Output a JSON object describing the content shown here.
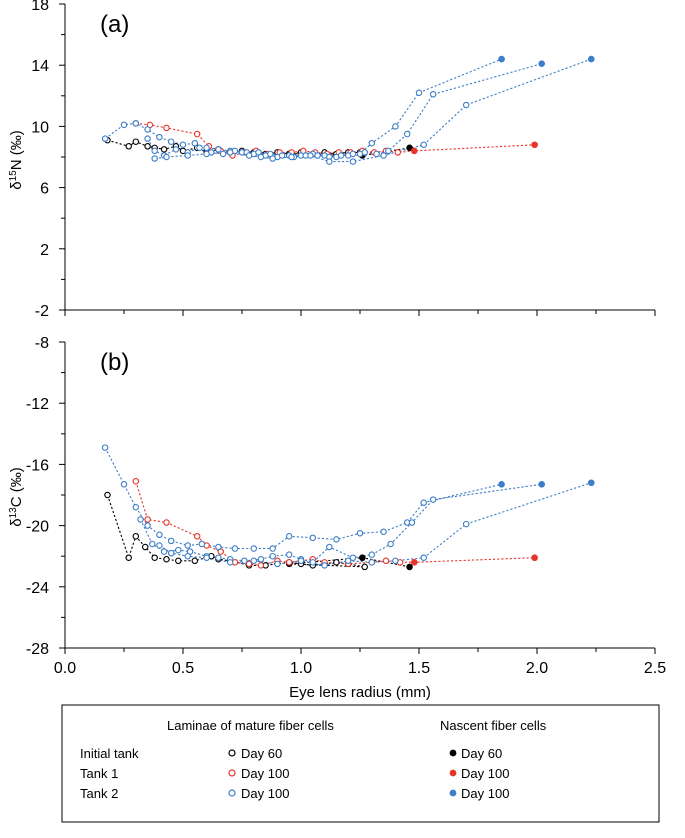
{
  "colors": {
    "black": "#000000",
    "red": "#e8352a",
    "blue": "#3d7ec8"
  },
  "shared_x": {
    "label": "Eye lens radius (mm)",
    "ticks": [
      "0.0",
      "0.5",
      "1.0",
      "1.5",
      "2.0",
      "2.5"
    ]
  },
  "legend": {
    "heading_mature": "Laminae of mature fiber cells",
    "heading_nascent": "Nascent fiber cells",
    "rows": [
      {
        "group": "Initial tank",
        "label": "Day 60",
        "color": "black"
      },
      {
        "group": "Tank 1",
        "label": "Day 100",
        "color": "red"
      },
      {
        "group": "Tank 2",
        "label": "Day 100",
        "color": "blue"
      }
    ]
  },
  "chart_data": [
    {
      "type": "line",
      "panel": "(a)",
      "ylabel_main": "δ",
      "ylabel_sup": "15",
      "ylabel_rest": "N (‰)",
      "xlim": [
        0,
        2.5
      ],
      "ylim": [
        -2,
        18
      ],
      "yticks": [
        -2,
        2,
        6,
        10,
        14,
        18
      ],
      "ytick_labels": [
        "-2",
        "2",
        "6",
        "10",
        "14",
        "18"
      ],
      "series": [
        {
          "name": "Initial tank Day 60",
          "color": "black",
          "points": [
            [
              0.18,
              9.1
            ],
            [
              0.27,
              8.7
            ],
            [
              0.3,
              9.0
            ],
            [
              0.35,
              8.7
            ],
            [
              0.38,
              8.6
            ],
            [
              0.42,
              8.5
            ],
            [
              0.47,
              8.7
            ],
            [
              0.5,
              8.4
            ],
            [
              0.56,
              8.6
            ],
            [
              0.6,
              8.3
            ],
            [
              0.65,
              8.5
            ],
            [
              0.7,
              8.3
            ],
            [
              0.75,
              8.4
            ],
            [
              0.8,
              8.3
            ],
            [
              0.85,
              8.2
            ],
            [
              0.9,
              8.3
            ],
            [
              0.95,
              8.2
            ],
            [
              1.0,
              8.3
            ],
            [
              1.05,
              8.2
            ],
            [
              1.1,
              8.3
            ],
            [
              1.15,
              8.2
            ],
            [
              1.2,
              8.3
            ],
            [
              1.25,
              8.3
            ]
          ],
          "nascent": [
            [
              0.95,
              8.2
            ],
            [
              1.26,
              8.1
            ],
            [
              1.46,
              8.6
            ]
          ]
        },
        {
          "name": "Tank 1 Day 100",
          "color": "red",
          "points": [
            [
              0.3,
              10.2
            ],
            [
              0.36,
              10.1
            ],
            [
              0.43,
              9.9
            ],
            [
              0.56,
              9.5
            ],
            [
              0.61,
              8.7
            ],
            [
              0.66,
              8.4
            ],
            [
              0.71,
              8.1
            ],
            [
              0.76,
              8.3
            ],
            [
              0.81,
              8.4
            ],
            [
              0.86,
              8.2
            ],
            [
              0.91,
              8.3
            ],
            [
              0.96,
              8.3
            ],
            [
              1.01,
              8.4
            ],
            [
              1.06,
              8.3
            ],
            [
              1.11,
              8.2
            ],
            [
              1.16,
              8.3
            ],
            [
              1.21,
              8.3
            ],
            [
              1.26,
              8.4
            ],
            [
              1.31,
              8.3
            ],
            [
              1.36,
              8.4
            ],
            [
              1.41,
              8.3
            ]
          ],
          "nascent": [
            [
              1.48,
              8.4
            ],
            [
              1.99,
              8.8
            ]
          ]
        },
        {
          "name": "Tank 2 Day 100 (1)",
          "color": "blue",
          "points": [
            [
              0.17,
              9.2
            ],
            [
              0.25,
              10.1
            ],
            [
              0.3,
              10.2
            ],
            [
              0.35,
              9.8
            ],
            [
              0.4,
              9.3
            ],
            [
              0.45,
              9.0
            ],
            [
              0.5,
              8.8
            ],
            [
              0.55,
              8.9
            ],
            [
              0.6,
              8.6
            ],
            [
              0.65,
              8.5
            ],
            [
              0.7,
              8.4
            ],
            [
              0.75,
              8.3
            ],
            [
              0.8,
              8.2
            ],
            [
              0.85,
              8.1
            ],
            [
              0.9,
              8.0
            ],
            [
              0.95,
              8.1
            ],
            [
              1.0,
              8.1
            ],
            [
              1.05,
              8.2
            ],
            [
              1.1,
              8.1
            ],
            [
              1.15,
              8.0
            ],
            [
              1.2,
              8.1
            ],
            [
              1.25,
              8.2
            ],
            [
              1.3,
              8.9
            ],
            [
              1.4,
              10.0
            ],
            [
              1.5,
              12.2
            ]
          ],
          "nascent": [
            [
              1.85,
              14.4
            ]
          ]
        },
        {
          "name": "Tank 2 Day 100 (2)",
          "color": "blue",
          "points": [
            [
              0.35,
              9.2
            ],
            [
              0.38,
              8.4
            ],
            [
              0.42,
              8.1
            ],
            [
              0.47,
              8.5
            ],
            [
              0.52,
              8.3
            ],
            [
              0.57,
              8.6
            ],
            [
              0.62,
              8.3
            ],
            [
              0.67,
              8.2
            ],
            [
              0.72,
              8.4
            ],
            [
              0.77,
              8.3
            ],
            [
              0.82,
              8.3
            ],
            [
              0.87,
              8.2
            ],
            [
              0.92,
              8.1
            ],
            [
              0.97,
              8.0
            ],
            [
              1.02,
              8.1
            ],
            [
              1.07,
              8.1
            ],
            [
              1.12,
              8.0
            ],
            [
              1.17,
              8.1
            ],
            [
              1.22,
              8.2
            ],
            [
              1.27,
              8.3
            ],
            [
              1.32,
              8.2
            ],
            [
              1.37,
              8.4
            ],
            [
              1.45,
              9.5
            ],
            [
              1.56,
              12.1
            ]
          ],
          "nascent": [
            [
              2.02,
              14.1
            ]
          ]
        },
        {
          "name": "Tank 2 Day 100 (3)",
          "color": "blue",
          "points": [
            [
              0.38,
              7.9
            ],
            [
              0.43,
              8.0
            ],
            [
              0.52,
              8.1
            ],
            [
              0.6,
              8.2
            ],
            [
              0.7,
              8.3
            ],
            [
              0.78,
              8.1
            ],
            [
              0.83,
              8.0
            ],
            [
              0.88,
              7.9
            ],
            [
              0.96,
              8.0
            ],
            [
              1.04,
              8.1
            ],
            [
              1.12,
              7.7
            ],
            [
              1.22,
              7.7
            ],
            [
              1.35,
              8.1
            ],
            [
              1.52,
              8.8
            ],
            [
              1.7,
              11.4
            ]
          ],
          "nascent": [
            [
              2.23,
              14.4
            ]
          ]
        }
      ]
    },
    {
      "type": "line",
      "panel": "(b)",
      "ylabel_main": "δ",
      "ylabel_sup": "13",
      "ylabel_rest": "C (‰)",
      "xlim": [
        0,
        2.5
      ],
      "ylim": [
        -28,
        -8
      ],
      "yticks": [
        -28,
        -24,
        -20,
        -16,
        -12,
        -8
      ],
      "ytick_labels": [
        "-28",
        "-24",
        "-20",
        "-16",
        "-12",
        "-8"
      ],
      "series": [
        {
          "name": "Initial tank Day 60",
          "color": "black",
          "points": [
            [
              0.18,
              -18.0
            ],
            [
              0.27,
              -22.1
            ],
            [
              0.3,
              -20.7
            ],
            [
              0.34,
              -21.4
            ],
            [
              0.38,
              -22.1
            ],
            [
              0.43,
              -22.2
            ],
            [
              0.48,
              -22.3
            ],
            [
              0.55,
              -22.3
            ],
            [
              0.62,
              -22.0
            ],
            [
              0.65,
              -22.2
            ],
            [
              0.7,
              -22.3
            ],
            [
              0.78,
              -22.6
            ],
            [
              0.85,
              -22.6
            ],
            [
              0.9,
              -22.5
            ],
            [
              0.95,
              -22.4
            ],
            [
              1.0,
              -22.5
            ],
            [
              1.05,
              -22.6
            ],
            [
              1.1,
              -22.5
            ],
            [
              1.15,
              -22.4
            ],
            [
              1.2,
              -22.5
            ],
            [
              1.27,
              -22.7
            ]
          ],
          "nascent": [
            [
              0.95,
              -22.5
            ],
            [
              1.26,
              -22.1
            ],
            [
              1.46,
              -22.7
            ]
          ]
        },
        {
          "name": "Tank 1 Day 100",
          "color": "red",
          "points": [
            [
              0.3,
              -17.1
            ],
            [
              0.35,
              -19.6
            ],
            [
              0.43,
              -19.8
            ],
            [
              0.56,
              -20.7
            ],
            [
              0.6,
              -21.3
            ],
            [
              0.66,
              -21.7
            ],
            [
              0.72,
              -22.4
            ],
            [
              0.78,
              -22.5
            ],
            [
              0.83,
              -22.6
            ],
            [
              0.9,
              -22.3
            ],
            [
              0.95,
              -22.4
            ],
            [
              1.0,
              -22.3
            ],
            [
              1.05,
              -22.2
            ],
            [
              1.1,
              -22.4
            ],
            [
              1.2,
              -22.5
            ],
            [
              1.3,
              -22.4
            ],
            [
              1.36,
              -22.3
            ],
            [
              1.42,
              -22.4
            ]
          ],
          "nascent": [
            [
              1.48,
              -22.4
            ],
            [
              1.99,
              -22.1
            ]
          ]
        },
        {
          "name": "Tank 2 Day 100 (1)",
          "color": "blue",
          "points": [
            [
              0.17,
              -14.9
            ],
            [
              0.25,
              -17.3
            ],
            [
              0.3,
              -18.8
            ],
            [
              0.35,
              -20.0
            ],
            [
              0.4,
              -20.6
            ],
            [
              0.45,
              -21.0
            ],
            [
              0.52,
              -21.3
            ],
            [
              0.58,
              -21.2
            ],
            [
              0.65,
              -21.4
            ],
            [
              0.72,
              -21.5
            ],
            [
              0.8,
              -21.5
            ],
            [
              0.88,
              -21.5
            ],
            [
              0.95,
              -20.7
            ],
            [
              1.05,
              -20.8
            ],
            [
              1.15,
              -20.9
            ],
            [
              1.25,
              -20.5
            ],
            [
              1.35,
              -20.4
            ],
            [
              1.45,
              -19.8
            ],
            [
              1.52,
              -18.5
            ]
          ],
          "nascent": [
            [
              1.85,
              -17.3
            ]
          ]
        },
        {
          "name": "Tank 2 Day 100 (2)",
          "color": "blue",
          "points": [
            [
              0.32,
              -19.6
            ],
            [
              0.37,
              -21.2
            ],
            [
              0.42,
              -21.7
            ],
            [
              0.48,
              -21.6
            ],
            [
              0.53,
              -21.7
            ],
            [
              0.6,
              -22.0
            ],
            [
              0.65,
              -22.1
            ],
            [
              0.7,
              -22.2
            ],
            [
              0.76,
              -22.3
            ],
            [
              0.83,
              -22.2
            ],
            [
              0.88,
              -22.0
            ],
            [
              0.95,
              -21.9
            ],
            [
              1.0,
              -22.2
            ],
            [
              1.05,
              -22.4
            ],
            [
              1.12,
              -21.4
            ],
            [
              1.22,
              -22.1
            ],
            [
              1.3,
              -21.9
            ],
            [
              1.38,
              -21.2
            ],
            [
              1.47,
              -19.8
            ],
            [
              1.56,
              -18.3
            ]
          ],
          "nascent": [
            [
              2.02,
              -17.3
            ]
          ]
        },
        {
          "name": "Tank 2 Day 100 (3)",
          "color": "blue",
          "points": [
            [
              0.4,
              -21.3
            ],
            [
              0.45,
              -21.8
            ],
            [
              0.52,
              -22.0
            ],
            [
              0.6,
              -22.1
            ],
            [
              0.7,
              -22.4
            ],
            [
              0.8,
              -22.3
            ],
            [
              0.9,
              -22.5
            ],
            [
              1.0,
              -22.3
            ],
            [
              1.1,
              -22.6
            ],
            [
              1.2,
              -22.3
            ],
            [
              1.3,
              -22.4
            ],
            [
              1.4,
              -22.3
            ],
            [
              1.52,
              -22.1
            ],
            [
              1.7,
              -19.9
            ]
          ],
          "nascent": [
            [
              2.23,
              -17.2
            ]
          ]
        }
      ]
    }
  ]
}
